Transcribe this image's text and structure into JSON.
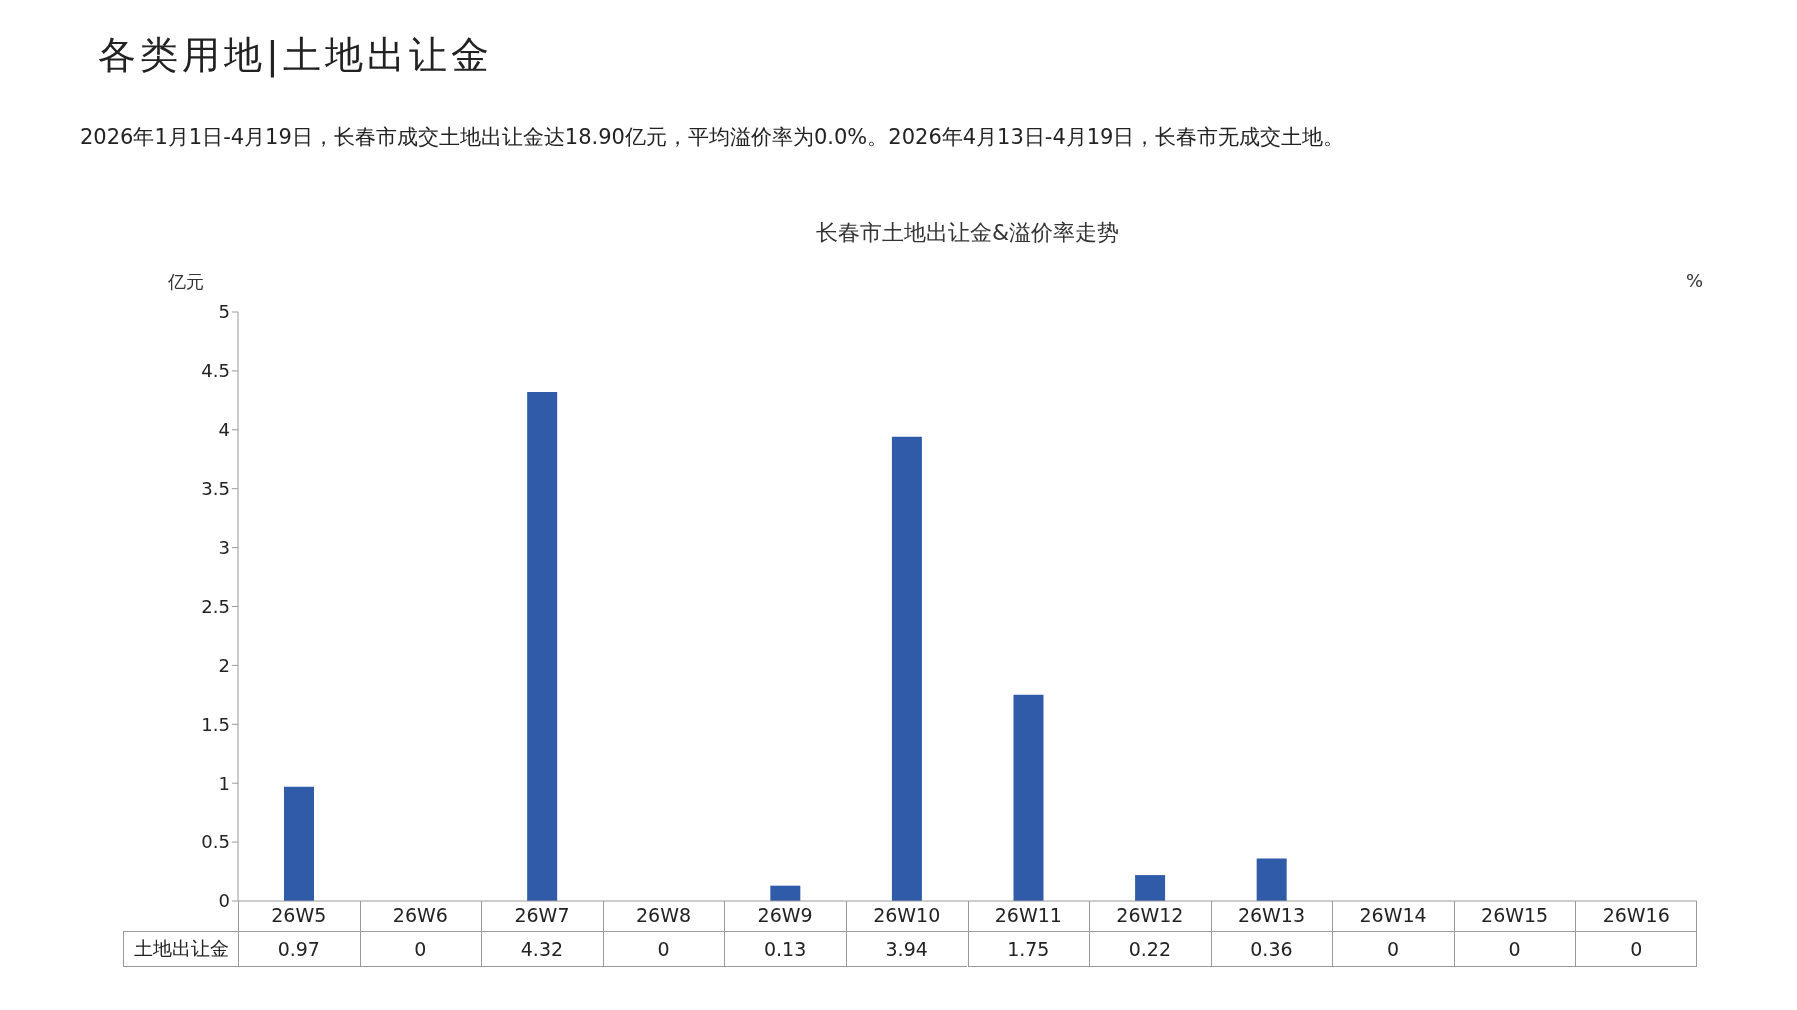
{
  "chart_data": {
    "type": "bar",
    "title": "长春市土地出让金&溢价率走势",
    "annotations": [
      "各类用地|土地出让金",
      "2026年1月1日-4月19日，长春市成交土地出让金达18.90亿元，平均溢价率为0.0%。2026年4月13日-4月19日，长春市无成交土地。"
    ],
    "ylabel": "亿元",
    "y2label": "%",
    "categories": [
      "26W5",
      "26W6",
      "26W7",
      "26W8",
      "26W9",
      "26W10",
      "26W11",
      "26W12",
      "26W13",
      "26W14",
      "26W15",
      "26W16"
    ],
    "series": [
      {
        "name": "土地出让金",
        "color": "#2f5ba9",
        "values": [
          0.97,
          0,
          4.32,
          0,
          0.13,
          3.94,
          1.75,
          0.22,
          0.36,
          0,
          0,
          0
        ]
      }
    ],
    "ylim": [
      0,
      5
    ],
    "yticks": [
      0,
      0.5,
      1,
      1.5,
      2,
      2.5,
      3,
      3.5,
      4,
      4.5,
      5
    ],
    "data_labels": true
  }
}
